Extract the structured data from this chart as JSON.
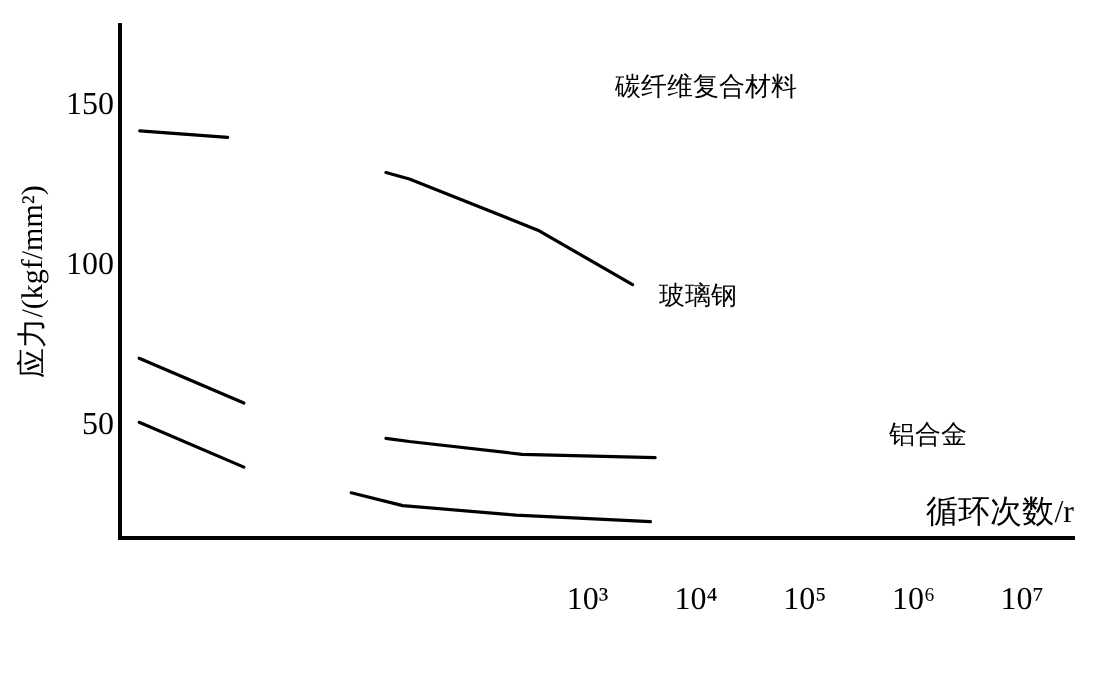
{
  "chart_data": {
    "type": "line",
    "xlabel": "循环次数/r",
    "ylabel": "应力/(kgf/mm²)",
    "log": "x",
    "grid": false,
    "legend": false,
    "marker": "none",
    "line_style": "solid",
    "xlim": [
      0.05,
      30000000
    ],
    "xticks": [
      {
        "value": 1000,
        "label": "10³"
      },
      {
        "value": 10000,
        "label": "10⁴"
      },
      {
        "value": 100000,
        "label": "10⁵"
      },
      {
        "value": 1000000,
        "label": "10⁶"
      },
      {
        "value": 10000000,
        "label": "10⁷"
      }
    ],
    "ylim": [
      15,
      175
    ],
    "yticks": [
      50,
      100,
      150
    ],
    "series": [
      {
        "color": "#000000",
        "x": [
          0.076,
          0.49
        ],
        "values": [
          142,
          140
        ]
      },
      {
        "color": "#000000",
        "x": [
          0.075,
          0.69
        ],
        "values": [
          71,
          57
        ]
      },
      {
        "color": "#000000",
        "x": [
          0.075,
          0.69
        ],
        "values": [
          51,
          37
        ]
      },
      {
        "color": "#000000",
        "x": [
          14,
          23,
          350,
          2600
        ],
        "values": [
          129,
          127,
          111,
          94
        ]
      },
      {
        "color": "#000000",
        "x": [
          14,
          23,
          250,
          4200
        ],
        "values": [
          46,
          45,
          41,
          40
        ]
      },
      {
        "color": "#000000",
        "x": [
          6.7,
          20,
          220,
          3800
        ],
        "values": [
          29,
          25,
          22,
          20
        ]
      }
    ],
    "annotations": [
      "碳纤维复合材料",
      "玻璃钢",
      "铝合金"
    ]
  }
}
